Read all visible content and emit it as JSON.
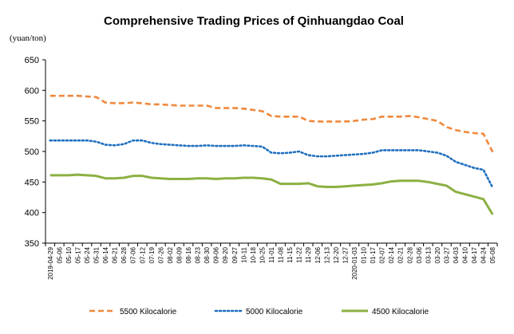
{
  "chart_data": {
    "type": "line",
    "title": "Comprehensive Trading Prices of Qinhuangdao Coal",
    "ylabel": "(yuan/ton)",
    "xlabel": "",
    "ylim": [
      350,
      650
    ],
    "yticks": [
      350,
      400,
      450,
      500,
      550,
      600,
      650
    ],
    "grid": false,
    "legend_position": "bottom",
    "x": [
      "2019-04-29",
      "05-06",
      "05-10",
      "05-17",
      "05-24",
      "05-31",
      "06-14",
      "06-21",
      "06-28",
      "07-06",
      "07-12",
      "07-19",
      "07-26",
      "08-02",
      "08-09",
      "08-16",
      "08-23",
      "08-30",
      "09-06",
      "09-20",
      "09-27",
      "10-11",
      "10-18",
      "10-25",
      "11-01",
      "11-08",
      "11-15",
      "11-22",
      "11-29",
      "12-06",
      "12-13",
      "12-20",
      "12-27",
      "2020-01-03",
      "01-10",
      "01-17",
      "02-07",
      "02-14",
      "02-21",
      "02-28",
      "03-06",
      "03-13",
      "03-20",
      "03-27",
      "04-03",
      "04-10",
      "04-17",
      "04-24",
      "05-08"
    ],
    "series": [
      {
        "name": "5500 Kilocalorie",
        "color": "#f0883c",
        "style": "dashed",
        "values": [
          591,
          591,
          591,
          591,
          590,
          589,
          580,
          579,
          579,
          580,
          579,
          577,
          577,
          576,
          575,
          575,
          575,
          575,
          571,
          571,
          571,
          570,
          568,
          566,
          558,
          557,
          557,
          557,
          550,
          549,
          549,
          549,
          549,
          550,
          552,
          553,
          557,
          557,
          557,
          558,
          556,
          553,
          550,
          540,
          535,
          532,
          530,
          529,
          499
        ]
      },
      {
        "name": "5000 Kilocalorie",
        "color": "#1f6fbf",
        "style": "dotted",
        "values": [
          518,
          518,
          518,
          518,
          518,
          516,
          511,
          510,
          512,
          518,
          518,
          514,
          512,
          511,
          510,
          509,
          509,
          510,
          509,
          509,
          509,
          510,
          509,
          508,
          498,
          497,
          498,
          500,
          494,
          492,
          492,
          493,
          494,
          495,
          496,
          498,
          502,
          502,
          502,
          502,
          502,
          500,
          498,
          493,
          483,
          478,
          473,
          470,
          441
        ]
      },
      {
        "name": "4500 Kilocalorie",
        "color": "#8cb043",
        "style": "solid",
        "values": [
          461,
          461,
          461,
          462,
          461,
          460,
          456,
          456,
          457,
          460,
          460,
          457,
          456,
          455,
          455,
          455,
          456,
          456,
          455,
          456,
          456,
          457,
          457,
          456,
          454,
          447,
          447,
          447,
          448,
          443,
          442,
          442,
          443,
          444,
          445,
          446,
          448,
          451,
          452,
          452,
          452,
          450,
          447,
          444,
          434,
          430,
          426,
          422,
          397
        ]
      }
    ]
  }
}
